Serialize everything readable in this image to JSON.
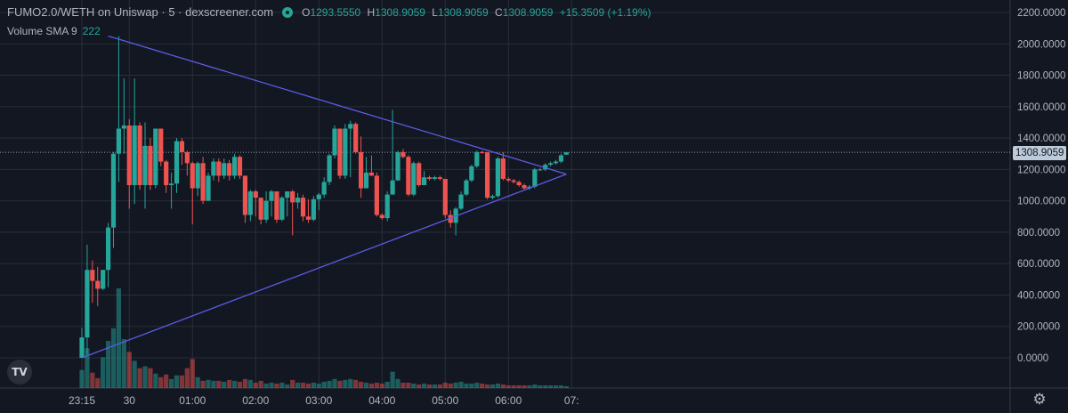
{
  "legend": {
    "title": "FUMO2.0/WETH on Uniswap · 5 · dexscreener.com",
    "open_label": "O",
    "open": "1293.5550",
    "high_label": "H",
    "high": "1308.9059",
    "low_label": "L",
    "low": "1308.9059",
    "close_label": "C",
    "close": "1308.9059",
    "change": "+15.3509 (+1.19%)"
  },
  "volume_legend": {
    "label": "Volume SMA 9",
    "value": "222"
  },
  "last_price": "1308.9059",
  "logo_text": "TV",
  "colors": {
    "up": "#26a69a",
    "down": "#ef5350",
    "trendline": "#5b5ce6",
    "background": "#131722",
    "grid": "#2a2e39"
  },
  "chart_data": {
    "type": "candlestick",
    "ylim": [
      -100,
      2200
    ],
    "yticks": [
      "2200.0000",
      "2000.0000",
      "1800.0000",
      "1600.0000",
      "1400.0000",
      "1200.0000",
      "1000.0000",
      "800.0000",
      "600.0000",
      "400.0000",
      "200.0000",
      "0.0000"
    ],
    "ytick_values": [
      2200,
      2000,
      1800,
      1600,
      1400,
      1200,
      1000,
      800,
      600,
      400,
      200,
      0
    ],
    "xticks": [
      "23:15",
      "30",
      "01:00",
      "02:00",
      "03:00",
      "04:00",
      "05:00",
      "06:00",
      "07:"
    ],
    "xtick_times": [
      "23:15",
      "00:00",
      "01:00",
      "02:00",
      "03:00",
      "04:00",
      "05:00",
      "06:00",
      "07:00"
    ],
    "start_time": "23:15",
    "interval": "5m",
    "candles": [
      [
        0,
        130,
        190,
        0,
        0,
        100
      ],
      [
        130,
        560,
        720,
        20,
        0,
        220
      ],
      [
        560,
        490,
        620,
        350,
        1,
        85
      ],
      [
        490,
        440,
        580,
        330,
        1,
        55
      ],
      [
        440,
        560,
        560,
        430,
        0,
        170
      ],
      [
        560,
        830,
        860,
        450,
        0,
        260
      ],
      [
        830,
        1300,
        1310,
        700,
        0,
        330
      ],
      [
        1300,
        1460,
        2050,
        1120,
        0,
        550
      ],
      [
        1460,
        1480,
        1780,
        1300,
        0,
        270
      ],
      [
        1480,
        1100,
        1520,
        950,
        1,
        200
      ],
      [
        1100,
        1480,
        1780,
        980,
        0,
        150
      ],
      [
        1480,
        1100,
        1500,
        1070,
        1,
        110
      ],
      [
        1100,
        1350,
        1500,
        950,
        0,
        120
      ],
      [
        1350,
        1100,
        1400,
        1070,
        1,
        110
      ],
      [
        1100,
        1460,
        1460,
        1080,
        0,
        80
      ],
      [
        1460,
        1250,
        1460,
        1220,
        1,
        60
      ],
      [
        1250,
        1100,
        1260,
        1050,
        1,
        75
      ],
      [
        1100,
        1110,
        1180,
        950,
        0,
        50
      ],
      [
        1110,
        1380,
        1400,
        1050,
        0,
        70
      ],
      [
        1380,
        1310,
        1400,
        1230,
        1,
        70
      ],
      [
        1310,
        1240,
        1320,
        1160,
        1,
        110
      ],
      [
        1240,
        1080,
        1250,
        850,
        1,
        160
      ],
      [
        1080,
        1240,
        1250,
        1030,
        0,
        60
      ],
      [
        1240,
        1000,
        1280,
        980,
        1,
        40
      ],
      [
        1000,
        1160,
        1180,
        1000,
        0,
        45
      ],
      [
        1160,
        1250,
        1270,
        1130,
        0,
        40
      ],
      [
        1250,
        1160,
        1270,
        1120,
        1,
        40
      ],
      [
        1160,
        1240,
        1270,
        1140,
        0,
        35
      ],
      [
        1240,
        1160,
        1260,
        1130,
        1,
        45
      ],
      [
        1160,
        1280,
        1300,
        1140,
        0,
        40
      ],
      [
        1280,
        1160,
        1290,
        1140,
        1,
        35
      ],
      [
        1160,
        910,
        1160,
        860,
        1,
        50
      ],
      [
        910,
        1060,
        1070,
        870,
        0,
        45
      ],
      [
        1060,
        1020,
        1070,
        900,
        1,
        30
      ],
      [
        1020,
        880,
        1020,
        850,
        1,
        40
      ],
      [
        880,
        1000,
        1060,
        860,
        0,
        25
      ],
      [
        1000,
        1060,
        1070,
        900,
        0,
        30
      ],
      [
        1060,
        880,
        1060,
        860,
        1,
        25
      ],
      [
        880,
        1020,
        1030,
        870,
        0,
        30
      ],
      [
        1020,
        1060,
        1060,
        900,
        0,
        20
      ],
      [
        1060,
        990,
        1070,
        780,
        1,
        45
      ],
      [
        990,
        1020,
        1050,
        950,
        0,
        30
      ],
      [
        1020,
        900,
        1040,
        870,
        1,
        30
      ],
      [
        900,
        880,
        1010,
        860,
        1,
        25
      ],
      [
        880,
        1010,
        1030,
        870,
        0,
        30
      ],
      [
        1010,
        1040,
        1050,
        940,
        0,
        25
      ],
      [
        1040,
        1120,
        1150,
        1020,
        0,
        35
      ],
      [
        1120,
        1290,
        1300,
        1100,
        0,
        40
      ],
      [
        1290,
        1460,
        1480,
        1270,
        0,
        50
      ],
      [
        1460,
        1160,
        1460,
        1140,
        1,
        40
      ],
      [
        1160,
        1460,
        1490,
        1140,
        0,
        45
      ],
      [
        1460,
        1490,
        1510,
        1150,
        0,
        50
      ],
      [
        1490,
        1310,
        1500,
        1300,
        1,
        45
      ],
      [
        1310,
        1080,
        1410,
        1020,
        1,
        35
      ],
      [
        1080,
        1180,
        1280,
        1080,
        0,
        30
      ],
      [
        1180,
        1160,
        1290,
        1160,
        1,
        25
      ],
      [
        1160,
        910,
        1180,
        900,
        1,
        30
      ],
      [
        910,
        890,
        920,
        880,
        1,
        25
      ],
      [
        890,
        1040,
        1060,
        870,
        0,
        35
      ],
      [
        1040,
        1130,
        1580,
        1040,
        0,
        90
      ],
      [
        1130,
        1310,
        1320,
        1130,
        0,
        50
      ],
      [
        1310,
        1280,
        1330,
        1270,
        1,
        30
      ],
      [
        1280,
        1040,
        1290,
        1030,
        1,
        30
      ],
      [
        1040,
        1240,
        1250,
        1030,
        0,
        25
      ],
      [
        1240,
        1100,
        1250,
        1090,
        1,
        20
      ],
      [
        1100,
        1150,
        1190,
        1120,
        0,
        25
      ],
      [
        1150,
        1140,
        1160,
        1130,
        1,
        20
      ],
      [
        1140,
        1150,
        1160,
        1130,
        0,
        20
      ],
      [
        1150,
        1140,
        1160,
        1130,
        1,
        20
      ],
      [
        1140,
        910,
        1140,
        890,
        1,
        30
      ],
      [
        910,
        860,
        940,
        830,
        1,
        25
      ],
      [
        860,
        950,
        960,
        780,
        0,
        30
      ],
      [
        950,
        1040,
        1060,
        940,
        0,
        35
      ],
      [
        1040,
        1130,
        1140,
        1030,
        0,
        25
      ],
      [
        1130,
        1220,
        1230,
        1120,
        0,
        25
      ],
      [
        1220,
        1310,
        1320,
        1210,
        0,
        30
      ],
      [
        1310,
        1310,
        1320,
        1300,
        1,
        25
      ],
      [
        1310,
        1020,
        1310,
        1010,
        1,
        20
      ],
      [
        1020,
        1030,
        1040,
        1010,
        0,
        20
      ],
      [
        1030,
        1270,
        1280,
        1020,
        0,
        25
      ],
      [
        1270,
        1140,
        1310,
        1130,
        1,
        20
      ],
      [
        1140,
        1130,
        1150,
        1120,
        1,
        15
      ],
      [
        1130,
        1120,
        1140,
        1110,
        1,
        15
      ],
      [
        1120,
        1100,
        1130,
        1090,
        1,
        15
      ],
      [
        1100,
        1080,
        1110,
        1070,
        1,
        15
      ],
      [
        1080,
        1090,
        1100,
        1070,
        0,
        15
      ],
      [
        1090,
        1200,
        1210,
        1080,
        0,
        20
      ],
      [
        1200,
        1200,
        1210,
        1190,
        0,
        15
      ],
      [
        1200,
        1230,
        1240,
        1190,
        0,
        15
      ],
      [
        1230,
        1240,
        1250,
        1220,
        0,
        15
      ],
      [
        1240,
        1250,
        1260,
        1230,
        0,
        15
      ],
      [
        1250,
        1290,
        1300,
        1240,
        0,
        15
      ],
      [
        1293.555,
        1308.9059,
        1308.9059,
        1308.9059,
        0,
        10
      ]
    ],
    "candle_fields": [
      "open",
      "close",
      "high",
      "low",
      "is_down",
      "volume"
    ],
    "trendlines": [
      {
        "from": [
          "23:15",
          0
        ],
        "to": [
          "06:55",
          1170
        ]
      },
      {
        "from": [
          "23:40",
          2050
        ],
        "to": [
          "06:55",
          1170
        ]
      }
    ],
    "last_price_line": 1308.9059,
    "grid": true
  }
}
